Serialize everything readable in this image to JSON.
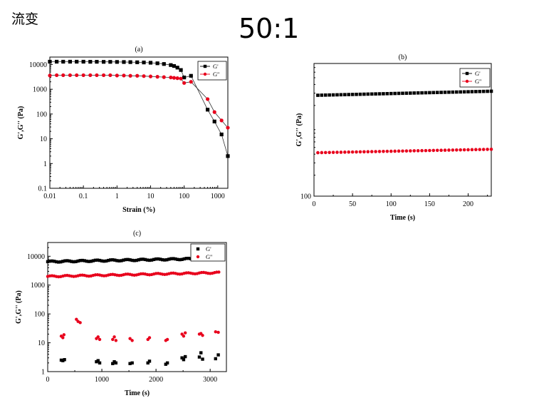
{
  "page": {
    "heading": "流变",
    "ratio_title": "50:1"
  },
  "colors": {
    "g_prime": "#000000",
    "g_double_prime": "#e8001c"
  },
  "chart_data": [
    {
      "type": "line",
      "panel": "(a)",
      "title": "(a)",
      "xlabel": "Strain (%)",
      "ylabel": "G',G'' (Pa)",
      "xscale": "log",
      "yscale": "log",
      "xlim": [
        0.01,
        2000
      ],
      "ylim": [
        0.1,
        20000
      ],
      "xticks": [
        0.01,
        0.1,
        1,
        10,
        100,
        1000
      ],
      "xtick_labels": [
        "0.01",
        "0.1",
        "1",
        "10",
        "100",
        "1000"
      ],
      "yticks": [
        0.1,
        1,
        10,
        100,
        1000,
        10000
      ],
      "ytick_labels": [
        "0.1",
        "1",
        "10",
        "100",
        "1000",
        "10000"
      ],
      "legend": "top-right",
      "series": [
        {
          "name": "G'",
          "marker": "square",
          "color": "#000000",
          "connected": true,
          "x": [
            0.01,
            0.016,
            0.025,
            0.04,
            0.063,
            0.1,
            0.16,
            0.25,
            0.4,
            0.63,
            1,
            1.6,
            2.5,
            4,
            6.3,
            10,
            16,
            25,
            40,
            50,
            63,
            80,
            100,
            160,
            500,
            800,
            1300,
            2000
          ],
          "y": [
            13000,
            13000,
            13000,
            13000,
            13000,
            13000,
            12900,
            12900,
            12800,
            12800,
            12700,
            12600,
            12500,
            12300,
            12100,
            11800,
            11200,
            10500,
            9500,
            8700,
            7500,
            6000,
            3000,
            3500,
            150,
            50,
            15,
            2
          ]
        },
        {
          "name": "G''",
          "marker": "circle",
          "color": "#e8001c",
          "connected": true,
          "x": [
            0.01,
            0.016,
            0.025,
            0.04,
            0.063,
            0.1,
            0.16,
            0.25,
            0.4,
            0.63,
            1,
            1.6,
            2.5,
            4,
            6.3,
            10,
            16,
            25,
            40,
            50,
            63,
            80,
            100,
            160,
            500,
            800,
            1300,
            2000
          ],
          "y": [
            3600,
            3700,
            3700,
            3700,
            3700,
            3700,
            3700,
            3700,
            3700,
            3700,
            3600,
            3600,
            3500,
            3500,
            3400,
            3300,
            3200,
            3100,
            3000,
            2900,
            2800,
            2700,
            1800,
            2000,
            400,
            120,
            55,
            28
          ]
        }
      ]
    },
    {
      "type": "scatter",
      "panel": "(b)",
      "title": "(b)",
      "xlabel": "Time (s)",
      "ylabel": "G',G'' (Pa)",
      "yscale": "log",
      "xlim": [
        0,
        230
      ],
      "ylim": [
        100,
        8000
      ],
      "xticks": [
        0,
        50,
        100,
        150,
        200
      ],
      "xtick_labels": [
        "0",
        "50",
        "100",
        "150",
        "200"
      ],
      "yticks": [
        100
      ],
      "ytick_labels": [
        "100"
      ],
      "legend": "top-right",
      "series": [
        {
          "name": "G'",
          "marker": "square",
          "color": "#000000",
          "x_start": 5,
          "x_end": 230,
          "x_step": 5,
          "y_start": 2800,
          "y_end": 3200
        },
        {
          "name": "G''",
          "marker": "circle",
          "color": "#e8001c",
          "x_start": 5,
          "x_end": 230,
          "x_step": 5,
          "y_start": 420,
          "y_end": 470
        }
      ]
    },
    {
      "type": "scatter",
      "panel": "(c)",
      "title": "(c)",
      "xlabel": "Time (s)",
      "ylabel": "G',G'' (Pa)",
      "yscale": "log",
      "xlim": [
        0,
        3300
      ],
      "ylim": [
        1,
        30000
      ],
      "xticks": [
        0,
        1000,
        2000,
        3000
      ],
      "xtick_labels": [
        "0",
        "1000",
        "2000",
        "3000"
      ],
      "yticks": [
        1,
        10,
        100,
        1000,
        10000
      ],
      "ytick_labels": [
        "1",
        "10",
        "100",
        "1000",
        "10000"
      ],
      "legend": "top-right",
      "series": [
        {
          "name": "G'",
          "marker": "square",
          "color": "#000000",
          "dense": {
            "x_start": 0,
            "x_end": 3150,
            "x_step": 40,
            "y_start": 6500,
            "y_end": 8500
          },
          "points": [
            [
              250,
              2.5
            ],
            [
              280,
              2.4
            ],
            [
              310,
              2.6
            ],
            [
              900,
              2.2
            ],
            [
              930,
              2.4
            ],
            [
              960,
              2.0
            ],
            [
              1200,
              1.9
            ],
            [
              1230,
              2.2
            ],
            [
              1260,
              2.0
            ],
            [
              1520,
              1.9
            ],
            [
              1560,
              2.0
            ],
            [
              1850,
              2.0
            ],
            [
              1880,
              2.3
            ],
            [
              2180,
              1.8
            ],
            [
              2210,
              2.0
            ],
            [
              2480,
              3.0
            ],
            [
              2510,
              2.6
            ],
            [
              2540,
              3.3
            ],
            [
              2800,
              3.2
            ],
            [
              2830,
              4.5
            ],
            [
              2860,
              2.7
            ],
            [
              3100,
              2.8
            ],
            [
              3150,
              3.8
            ]
          ]
        },
        {
          "name": "G''",
          "marker": "circle",
          "color": "#e8001c",
          "dense": {
            "x_start": 0,
            "x_end": 3150,
            "x_step": 40,
            "y_start": 2000,
            "y_end": 2700
          },
          "points": [
            [
              250,
              17
            ],
            [
              280,
              15
            ],
            [
              300,
              19
            ],
            [
              530,
              65
            ],
            [
              560,
              55
            ],
            [
              600,
              50
            ],
            [
              900,
              14
            ],
            [
              930,
              16
            ],
            [
              960,
              13
            ],
            [
              1200,
              13
            ],
            [
              1230,
              16
            ],
            [
              1260,
              12
            ],
            [
              1520,
              14
            ],
            [
              1560,
              12
            ],
            [
              1850,
              13
            ],
            [
              1880,
              15
            ],
            [
              2180,
              12
            ],
            [
              2210,
              13
            ],
            [
              2480,
              20
            ],
            [
              2510,
              17
            ],
            [
              2540,
              22
            ],
            [
              2800,
              20
            ],
            [
              2830,
              21
            ],
            [
              2860,
              18
            ],
            [
              3100,
              24
            ],
            [
              3150,
              23
            ]
          ]
        }
      ]
    }
  ]
}
